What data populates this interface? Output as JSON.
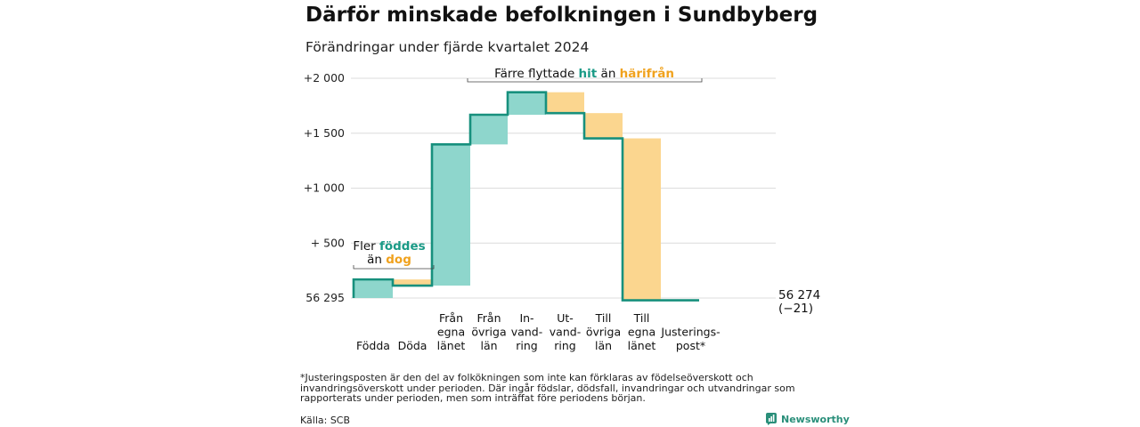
{
  "title": "Därför minskade befolkningen i Sundbyberg",
  "subtitle": "Förändringar under fjärde kvartalet 2024",
  "footnote": "*Justeringsposten är den del av folkökningen som inte kan förklaras av födelseöverskott och invandringsöverskott under perioden. Där ingår födslar, dödsfall, invandringar och utvandringar som rapporterats under perioden, men som inträffat före periodens början.",
  "source": "Källa: SCB",
  "brand": "Newsworthy",
  "colors": {
    "increase": "#8ed6cc",
    "decrease": "#fbd68f",
    "line": "#17907d",
    "teal_text": "#1a9a86",
    "orange_text": "#f0a21e"
  },
  "chart_data": {
    "type": "waterfall",
    "baseline": 56295,
    "ylim": [
      0,
      2000
    ],
    "yticks": [
      {
        "value": 0,
        "label": "56 295"
      },
      {
        "value": 500,
        "label": "+  500"
      },
      {
        "value": 1000,
        "label": "+1 000"
      },
      {
        "value": 1500,
        "label": "+1 500"
      },
      {
        "value": 2000,
        "label": "+2 000"
      }
    ],
    "steps": [
      {
        "category": [
          "Födda"
        ],
        "value": 169,
        "kind": "increase"
      },
      {
        "category": [
          "Döda"
        ],
        "value": -56,
        "kind": "decrease"
      },
      {
        "category": [
          "Från",
          "egna",
          "länet"
        ],
        "value": 1285,
        "kind": "increase"
      },
      {
        "category": [
          "Från",
          "övriga",
          "län"
        ],
        "value": 270,
        "kind": "increase"
      },
      {
        "category": [
          "In-",
          "vand-",
          "ring"
        ],
        "value": 205,
        "kind": "increase"
      },
      {
        "category": [
          "Ut-",
          "vand-",
          "ring"
        ],
        "value": -190,
        "kind": "decrease"
      },
      {
        "category": [
          "Till",
          "övriga",
          "län"
        ],
        "value": -230,
        "kind": "decrease"
      },
      {
        "category": [
          "Till",
          "egna",
          "länet"
        ],
        "value": -1474,
        "kind": "decrease"
      },
      {
        "category": [
          "Justerings-",
          "post*"
        ],
        "value": 0,
        "kind": "decrease"
      }
    ],
    "end_label": [
      "56 274",
      "(−21)"
    ],
    "annotation_births": {
      "line1_a": "Fler ",
      "line1_b": "föddes",
      "line2_a": "än ",
      "line2_b": "dog"
    },
    "annotation_moves": {
      "a": "Färre flyttade ",
      "b": "hit",
      "c": " än ",
      "d": "härifrån"
    }
  }
}
